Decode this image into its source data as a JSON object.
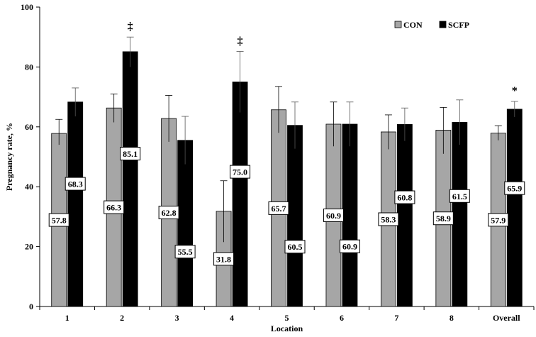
{
  "chart_data": {
    "type": "bar",
    "title": "",
    "xlabel": "Location",
    "ylabel": "Pregnancy rate, %",
    "ylim": [
      0,
      100
    ],
    "yticks": [
      "0",
      "20",
      "40",
      "60",
      "80",
      "100"
    ],
    "categories": [
      "1",
      "2",
      "3",
      "4",
      "5",
      "6",
      "7",
      "8",
      "Overall"
    ],
    "series": [
      {
        "name": "CON",
        "color": "#a6a6a6",
        "values": [
          57.8,
          66.3,
          62.8,
          31.8,
          65.7,
          60.9,
          58.3,
          58.9,
          57.9
        ],
        "labels": [
          "57.8",
          "66.3",
          "62.8",
          "31.8",
          "65.7",
          "60.9",
          "58.3",
          "58.9",
          "57.9"
        ],
        "err_upper": [
          62.5,
          71.0,
          70.5,
          42.0,
          73.5,
          68.3,
          64.0,
          66.5,
          60.4
        ],
        "err_lower": [
          54.0,
          61.5,
          55.0,
          21.5,
          58.0,
          53.5,
          52.5,
          51.0,
          55.5
        ]
      },
      {
        "name": "SCFP",
        "color": "#000000",
        "values": [
          68.3,
          85.1,
          55.5,
          75.0,
          60.5,
          60.9,
          60.8,
          61.5,
          65.9
        ],
        "labels": [
          "68.3",
          "85.1",
          "55.5",
          "75.0",
          "60.5",
          "60.9",
          "60.8",
          "61.5",
          "65.9"
        ],
        "err_upper": [
          73.0,
          90.0,
          63.5,
          85.2,
          68.3,
          68.3,
          66.3,
          69.0,
          68.5
        ],
        "err_lower": [
          63.5,
          80.0,
          47.5,
          64.8,
          52.7,
          53.5,
          55.3,
          54.0,
          63.3
        ]
      }
    ],
    "significance": [
      {
        "category": "2",
        "mark": "‡"
      },
      {
        "category": "4",
        "mark": "‡"
      },
      {
        "category": "Overall",
        "mark": "*"
      }
    ],
    "legend": {
      "position": "top-right",
      "items": [
        "CON",
        "SCFP"
      ]
    },
    "grid": false
  }
}
